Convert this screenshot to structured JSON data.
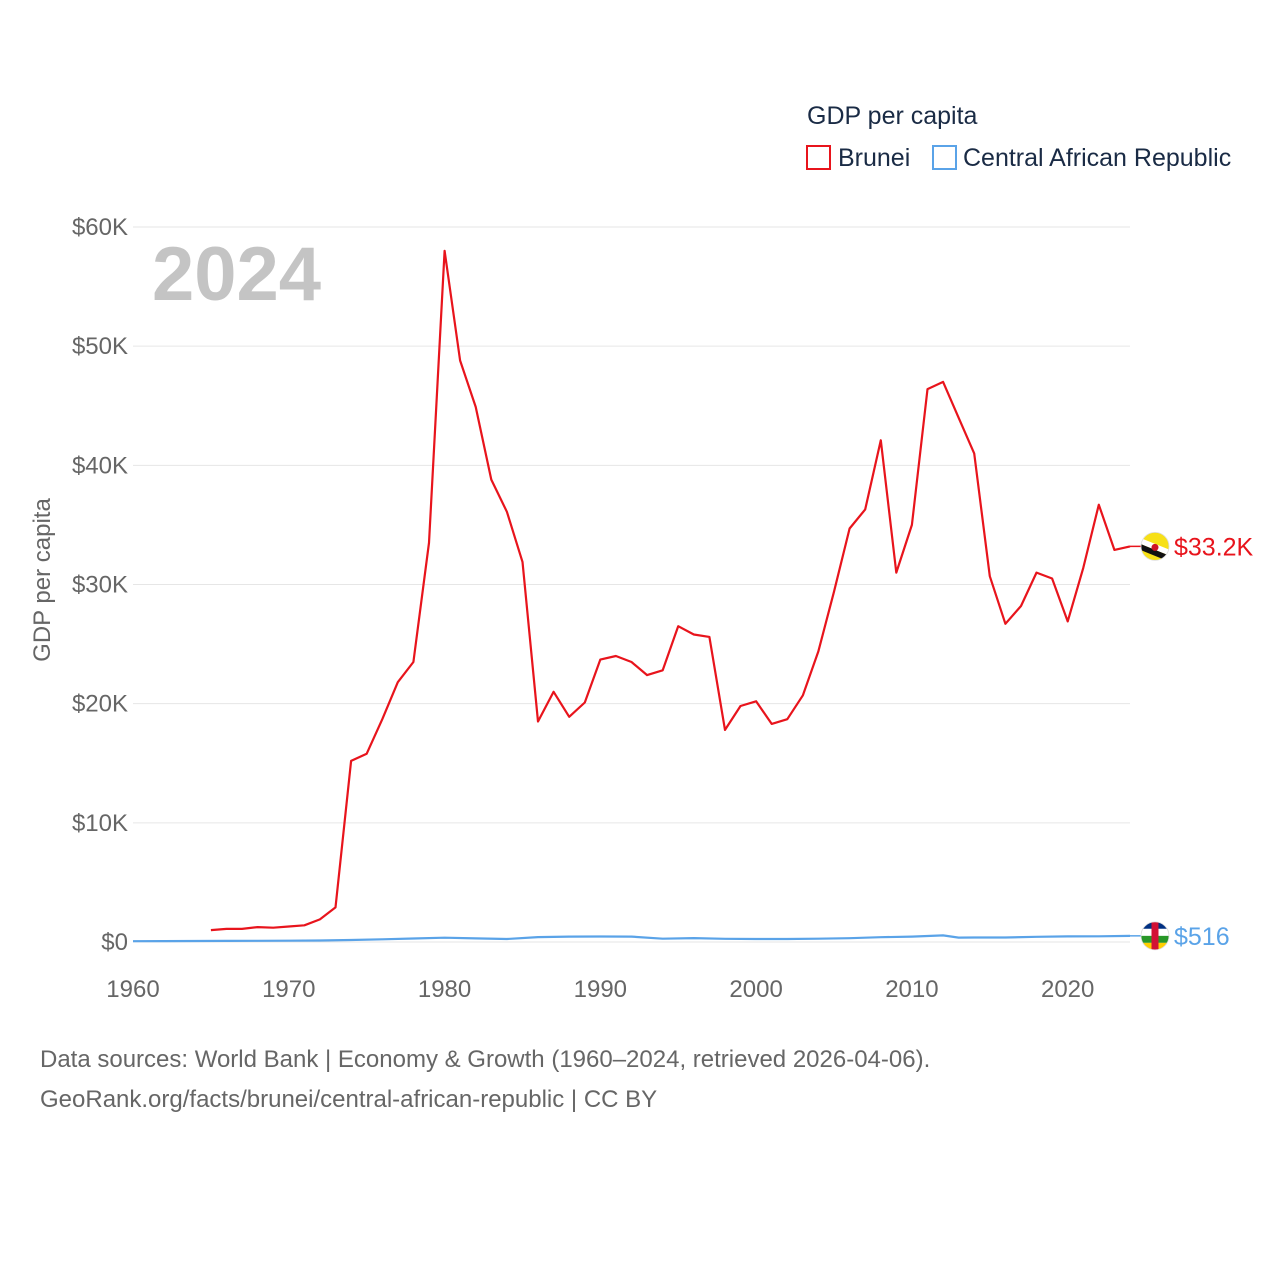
{
  "chart_data": {
    "type": "line",
    "legend_title": "GDP per capita",
    "ylabel": "GDP per capita",
    "xlabel": "",
    "year_label": "2024",
    "xlim": [
      1960,
      2024
    ],
    "ylim": [
      0,
      60000
    ],
    "x_ticks": [
      "1960",
      "1970",
      "1980",
      "1990",
      "2000",
      "2010",
      "2020"
    ],
    "y_ticks": [
      "$0",
      "$10K",
      "$20K",
      "$30K",
      "$40K",
      "$50K",
      "$60K"
    ],
    "series": [
      {
        "name": "Brunei",
        "color": "#e8141c",
        "end_label": "$33.2K",
        "flag_icon": "brunei-flag-icon",
        "x": [
          1965,
          1966,
          1967,
          1968,
          1969,
          1970,
          1971,
          1972,
          1973,
          1974,
          1975,
          1976,
          1977,
          1978,
          1979,
          1980,
          1981,
          1982,
          1983,
          1984,
          1985,
          1986,
          1987,
          1988,
          1989,
          1990,
          1991,
          1992,
          1993,
          1994,
          1995,
          1996,
          1997,
          1998,
          1999,
          2000,
          2001,
          2002,
          2003,
          2004,
          2005,
          2006,
          2007,
          2008,
          2009,
          2010,
          2011,
          2012,
          2013,
          2014,
          2015,
          2016,
          2017,
          2018,
          2019,
          2020,
          2021,
          2022,
          2023,
          2024
        ],
        "values": [
          1000,
          1100,
          1100,
          1250,
          1200,
          1300,
          1400,
          1900,
          2900,
          15200,
          15800,
          18700,
          21800,
          23500,
          33500,
          58000,
          48800,
          44900,
          38800,
          36100,
          31900,
          18500,
          21000,
          18900,
          20100,
          23700,
          24000,
          23500,
          22400,
          22800,
          26500,
          25800,
          25600,
          17800,
          19800,
          20200,
          18300,
          18700,
          20700,
          24400,
          29400,
          34700,
          36300,
          42100,
          31000,
          35000,
          46400,
          47000,
          44000,
          41000,
          30700,
          26700,
          28200,
          31000,
          30500,
          26900,
          31400,
          36700,
          32900,
          33200
        ]
      },
      {
        "name": "Central African Republic",
        "color": "#5aa3e8",
        "end_label": "$516",
        "flag_icon": "central-african-republic-flag-icon",
        "x": [
          1960,
          1962,
          1964,
          1966,
          1968,
          1970,
          1972,
          1974,
          1976,
          1978,
          1980,
          1982,
          1984,
          1986,
          1988,
          1990,
          1992,
          1994,
          1996,
          1998,
          2000,
          2002,
          2004,
          2006,
          2008,
          2010,
          2012,
          2013,
          2014,
          2016,
          2018,
          2020,
          2022,
          2024
        ],
        "values": [
          70,
          75,
          80,
          90,
          100,
          110,
          130,
          170,
          230,
          290,
          360,
          300,
          250,
          410,
          450,
          460,
          450,
          280,
          330,
          270,
          250,
          250,
          280,
          320,
          400,
          450,
          550,
          370,
          380,
          380,
          440,
          470,
          480,
          516
        ]
      }
    ]
  },
  "footer": {
    "line1": "Data sources: World Bank | Economy & Growth (1960–2024, retrieved 2026-04-06).",
    "line2": "GeoRank.org/facts/brunei/central-african-republic | CC BY"
  }
}
